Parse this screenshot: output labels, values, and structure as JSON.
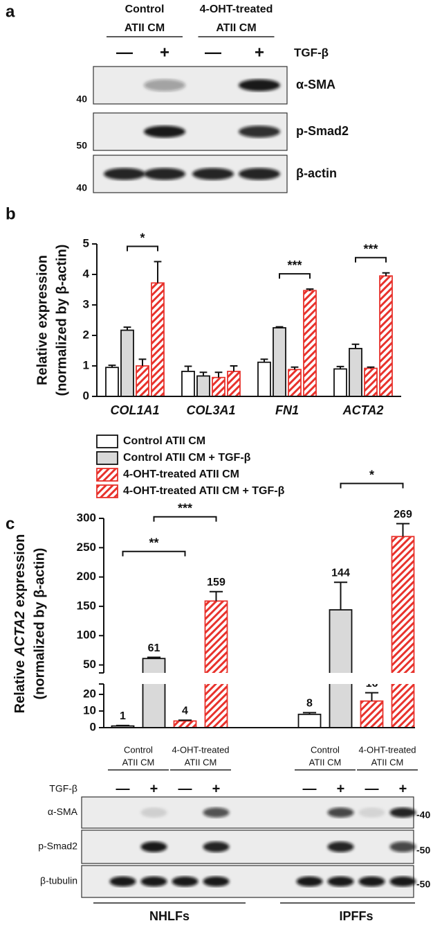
{
  "figure": {
    "panel_labels": [
      "a",
      "b",
      "c"
    ]
  },
  "blot_a": {
    "groups": [
      [
        "Control",
        "ATII CM"
      ],
      [
        "4-OHT-treated",
        "ATII CM"
      ]
    ],
    "treatment": "TGF-β",
    "lanes": [
      "—",
      "+",
      "—",
      "+"
    ],
    "rows": [
      {
        "label": "α-SMA",
        "marker": "40"
      },
      {
        "label": "p-Smad2",
        "marker": "50"
      },
      {
        "label": "β-actin",
        "marker": "40"
      }
    ]
  },
  "chart_data": [
    {
      "type": "bar",
      "ylabel": [
        "Relative expression",
        "(normalized by β-actin)"
      ],
      "categories": [
        "COL1A1",
        "COL3A1",
        "FN1",
        "ACTA2"
      ],
      "ylim": [
        0,
        5
      ],
      "yticks": [
        0,
        1,
        2,
        3,
        4,
        5
      ],
      "series": [
        {
          "name": "Control ATII CM",
          "color": "#ffffff",
          "values": [
            0.95,
            0.82,
            1.12,
            0.9
          ],
          "errors": [
            0.07,
            0.17,
            0.1,
            0.08
          ]
        },
        {
          "name": "Control ATII CM + TGF-β",
          "color": "#d9d9d9",
          "values": [
            2.17,
            0.67,
            2.25,
            1.57
          ],
          "errors": [
            0.1,
            0.12,
            0.03,
            0.14
          ]
        },
        {
          "name": "4-OHT-treated ATII CM",
          "color": "#e8322c",
          "hatch": true,
          "values": [
            1.0,
            0.62,
            0.88,
            0.92
          ],
          "errors": [
            0.22,
            0.17,
            0.08,
            0.04
          ]
        },
        {
          "name": "4-OHT-treated ATII CM + TGF-β",
          "color": "#e8322c",
          "hatch": true,
          "values": [
            3.72,
            0.82,
            3.47,
            3.95
          ],
          "errors": [
            0.7,
            0.18,
            0.05,
            0.1
          ]
        }
      ],
      "significance": [
        {
          "label": "*",
          "category": 0,
          "from": 1,
          "to": 3
        },
        {
          "label": "***",
          "category": 2,
          "from": 1,
          "to": 3
        },
        {
          "label": "***",
          "category": 3,
          "from": 1,
          "to": 3
        }
      ],
      "legend": "bottom"
    },
    {
      "type": "bar",
      "ylabel": [
        [
          "Relative ",
          "ACTA2",
          " expression"
        ],
        "(normalized by β-actin)"
      ],
      "categories": [
        "NHLFs",
        "IPFFs"
      ],
      "ylim": [
        0,
        300
      ],
      "axis_break": [
        25,
        40
      ],
      "yticks": [
        0,
        10,
        20,
        50,
        100,
        150,
        200,
        250,
        300
      ],
      "series": [
        {
          "color": "#ffffff",
          "values": [
            1,
            8
          ],
          "errors": [
            0.3,
            1
          ]
        },
        {
          "color": "#d9d9d9",
          "values": [
            61,
            144
          ],
          "errors": [
            2,
            47
          ]
        },
        {
          "color": "#e8322c",
          "hatch": true,
          "values": [
            4,
            16
          ],
          "errors": [
            0.5,
            5
          ]
        },
        {
          "color": "#e8322c",
          "hatch": true,
          "values": [
            159,
            269
          ],
          "errors": [
            16,
            22
          ]
        }
      ],
      "significance": [
        {
          "label": "**",
          "category": 0,
          "from": 0,
          "to": 2
        },
        {
          "label": "***",
          "category": 0,
          "from": 1,
          "to": 3
        },
        {
          "label": "*",
          "category": 1,
          "from": 1,
          "to": 3
        }
      ],
      "data_labels": true
    }
  ],
  "blot_c": {
    "groups": [
      [
        "Control",
        "ATII CM"
      ],
      [
        "4-OHT-treated",
        "ATII CM"
      ],
      [
        "Control",
        "ATII CM"
      ],
      [
        "4-OHT-treated",
        "ATII CM"
      ]
    ],
    "treatment": "TGF-β",
    "lanes": [
      "—",
      "+",
      "—",
      "+",
      "—",
      "+",
      "—",
      "+"
    ],
    "rows": [
      {
        "label": "α-SMA",
        "marker": "-40"
      },
      {
        "label": "p-Smad2",
        "marker": "-50"
      },
      {
        "label": "β-tubulin",
        "marker": "-50"
      }
    ]
  }
}
